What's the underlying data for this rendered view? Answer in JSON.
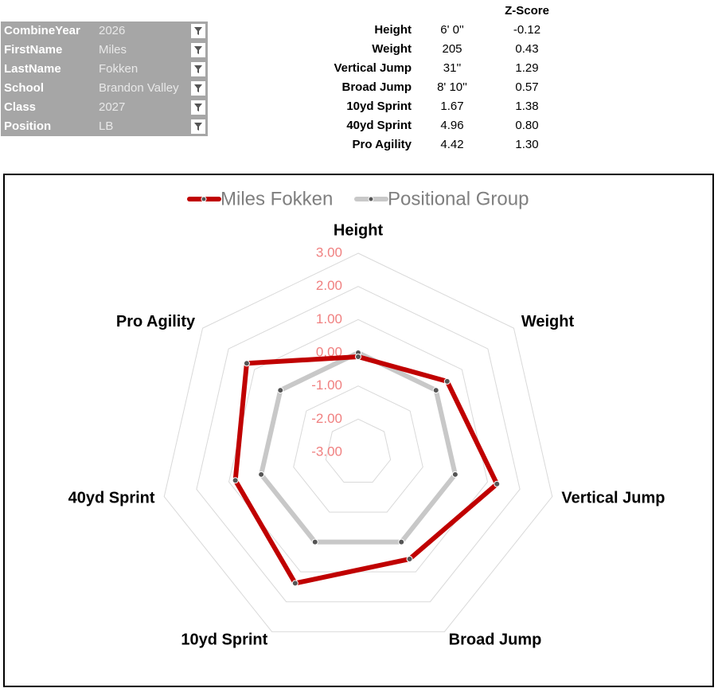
{
  "filters": [
    {
      "label": "CombineYear",
      "value": "2026"
    },
    {
      "label": "FirstName",
      "value": "Miles"
    },
    {
      "label": "LastName",
      "value": "Fokken"
    },
    {
      "label": "School",
      "value": "Brandon Valley"
    },
    {
      "label": "Class",
      "value": "2027"
    },
    {
      "label": "Position",
      "value": "LB"
    }
  ],
  "table": {
    "header": "Z-Score",
    "rows": [
      [
        "Height",
        "6' 0''",
        "-0.12"
      ],
      [
        "Weight",
        "205",
        "0.43"
      ],
      [
        "Vertical Jump",
        "31''",
        "1.29"
      ],
      [
        "Broad Jump",
        "8' 10''",
        "0.57"
      ],
      [
        "10yd Sprint",
        "1.67",
        "1.38"
      ],
      [
        "40yd Sprint",
        "4.96",
        "0.80"
      ],
      [
        "Pro Agility",
        "4.42",
        "1.30"
      ]
    ]
  },
  "chart_data": {
    "type": "radar",
    "categories": [
      "Height",
      "Weight",
      "Vertical Jump",
      "Broad Jump",
      "10yd Sprint",
      "40yd Sprint",
      "Pro Agility"
    ],
    "series": [
      {
        "name": "Miles Fokken",
        "color": "#c00000",
        "values": [
          -0.12,
          0.43,
          1.29,
          0.57,
          1.38,
          0.8,
          1.3
        ]
      },
      {
        "name": "Positional Group",
        "color": "#c8c8c8",
        "values": [
          0,
          0,
          0,
          0,
          0,
          0,
          0
        ]
      }
    ],
    "ylim": [
      -3,
      3
    ],
    "yticks": [
      {
        "value": 3,
        "label": "3.00"
      },
      {
        "value": 2,
        "label": "2.00"
      },
      {
        "value": 1,
        "label": "1.00"
      },
      {
        "value": 0,
        "label": "0.00"
      },
      {
        "value": -1,
        "label": "-1.00"
      },
      {
        "value": -2,
        "label": "-2.00"
      },
      {
        "value": -3,
        "label": "-3.00"
      }
    ],
    "grid": true,
    "legend": "top"
  }
}
